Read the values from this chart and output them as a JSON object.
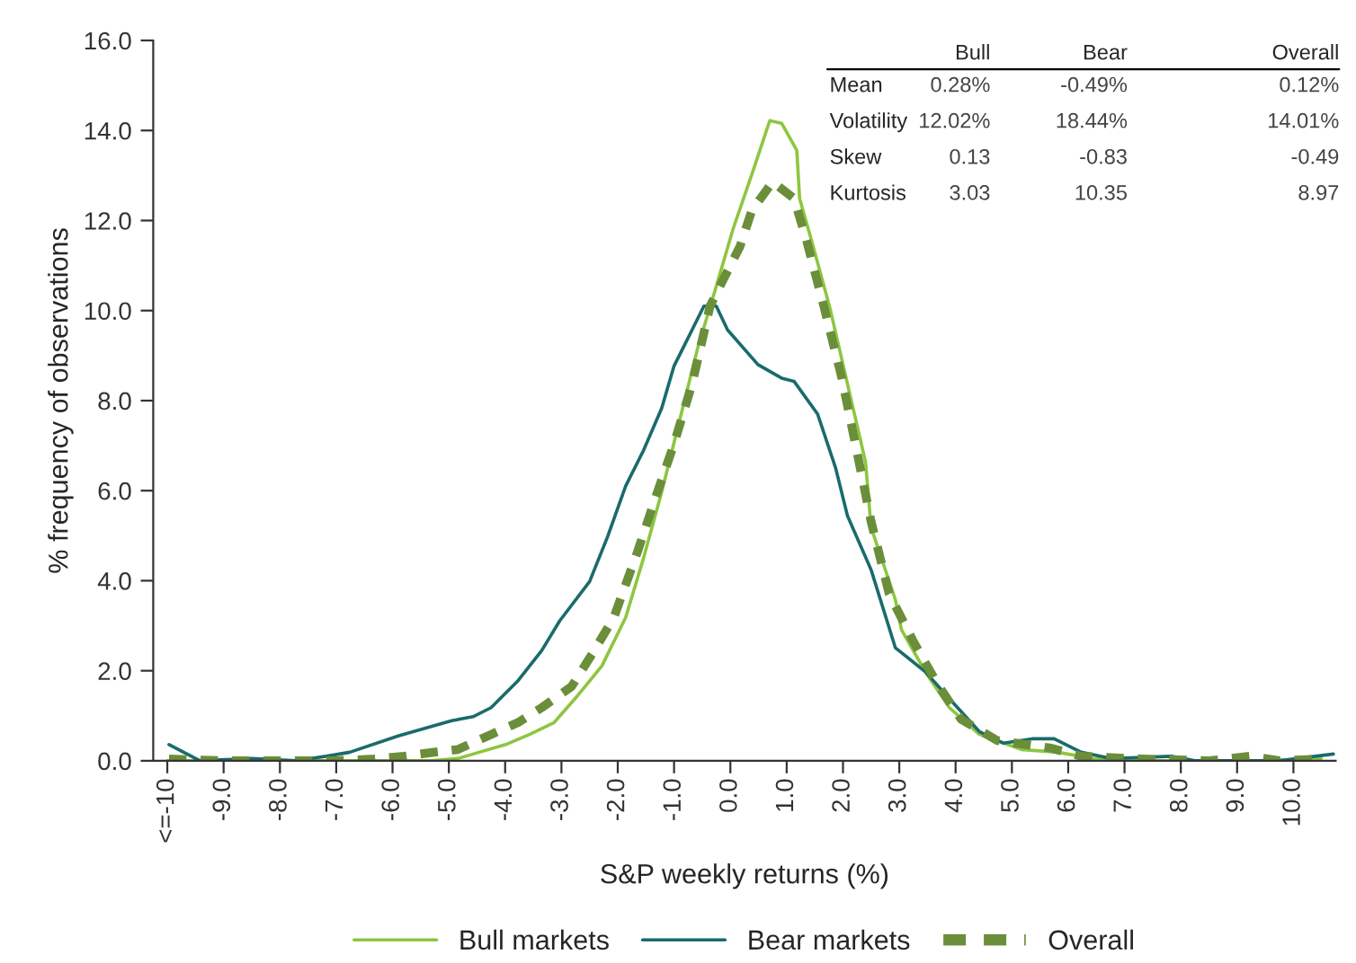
{
  "chart_data": {
    "type": "line",
    "xlabel": "S&P weekly returns (%)",
    "ylabel": "% frequency of observations",
    "xlim": [
      -10.25,
      10.75
    ],
    "xticks": [
      {
        "value": -10,
        "label": "<=-10"
      },
      {
        "value": -9,
        "label": "-9.0"
      },
      {
        "value": -8,
        "label": "-8.0"
      },
      {
        "value": -7,
        "label": "-7.0"
      },
      {
        "value": -6,
        "label": "-6.0"
      },
      {
        "value": -5,
        "label": "-5.0"
      },
      {
        "value": -4,
        "label": "-4.0"
      },
      {
        "value": -3,
        "label": "-3.0"
      },
      {
        "value": -2,
        "label": "-2.0"
      },
      {
        "value": -1,
        "label": "-1.0"
      },
      {
        "value": 0,
        "label": "0.0"
      },
      {
        "value": 1,
        "label": "1.0"
      },
      {
        "value": 2,
        "label": "2.0"
      },
      {
        "value": 3,
        "label": "3.0"
      },
      {
        "value": 4,
        "label": "4.0"
      },
      {
        "value": 5,
        "label": "5.0"
      },
      {
        "value": 6,
        "label": "6.0"
      },
      {
        "value": 7,
        "label": "7.0"
      },
      {
        "value": 8,
        "label": "8.0"
      },
      {
        "value": 9,
        "label": "9.0"
      },
      {
        "value": 10,
        "label": "10.0"
      }
    ],
    "ylim": [
      0,
      16
    ],
    "yticks": [
      {
        "value": 0,
        "label": "0.0"
      },
      {
        "value": 2,
        "label": "2.0"
      },
      {
        "value": 4,
        "label": "4.0"
      },
      {
        "value": 6,
        "label": "6.0"
      },
      {
        "value": 8,
        "label": "8.0"
      },
      {
        "value": 10,
        "label": "10.0"
      },
      {
        "value": 12,
        "label": "12.0"
      },
      {
        "value": 14,
        "label": "14.0"
      },
      {
        "value": 16,
        "label": "16.0"
      }
    ],
    "grid": false,
    "legend": "bottom",
    "series": [
      {
        "name": "Bull markets",
        "color": "#8dc63f",
        "line_style": "solid",
        "x": [
          -10,
          -9,
          -8,
          -7,
          -6,
          -5.3,
          -4.84,
          -3.99,
          -3.56,
          -3.13,
          -2.71,
          -2.28,
          -1.86,
          -1.54,
          -1.22,
          -0.9,
          -0.58,
          -0.26,
          0.05,
          0.38,
          0.7,
          0.91,
          1.18,
          1.23,
          1.44,
          1.76,
          2.08,
          2.4,
          2.5,
          2.93,
          3.04,
          3.46,
          3.89,
          4.42,
          5.17,
          5.81,
          6.45,
          7.5,
          8.5,
          9.5,
          10.49
        ],
        "values": [
          0,
          0,
          0,
          0,
          0,
          0,
          0.05,
          0.36,
          0.59,
          0.85,
          1.45,
          2.11,
          3.18,
          4.51,
          5.97,
          7.57,
          9.17,
          10.5,
          11.82,
          13.02,
          14.22,
          14.16,
          13.56,
          12.49,
          11.56,
          10.1,
          8.37,
          6.64,
          5.18,
          3.58,
          2.91,
          1.98,
          1.18,
          0.59,
          0.25,
          0.19,
          0.05,
          0,
          0,
          0,
          0.05
        ]
      },
      {
        "name": "Bear markets",
        "color": "#1a6b6b",
        "line_style": "solid",
        "x": [
          -9.97,
          -9.42,
          -8.5,
          -7.72,
          -7.18,
          -6.76,
          -5.9,
          -4.95,
          -4.57,
          -4.25,
          -3.77,
          -3.35,
          -3.03,
          -2.5,
          -2.18,
          -1.86,
          -1.54,
          -1.22,
          -1.0,
          -0.68,
          -0.47,
          -0.25,
          -0.05,
          0.49,
          0.91,
          1.13,
          1.55,
          1.87,
          2.08,
          2.5,
          2.93,
          3.46,
          3.89,
          4.42,
          4.85,
          5.38,
          5.75,
          6.23,
          6.76,
          7.83,
          8.25,
          9.2,
          9.75,
          10.71
        ],
        "values": [
          0.36,
          0,
          0.05,
          0,
          0.1,
          0.19,
          0.55,
          0.89,
          0.98,
          1.18,
          1.78,
          2.45,
          3.11,
          3.98,
          4.98,
          6.1,
          6.9,
          7.83,
          8.77,
          9.57,
          10.1,
          10.1,
          9.57,
          8.8,
          8.5,
          8.43,
          7.7,
          6.5,
          5.44,
          4.24,
          2.51,
          1.98,
          1.38,
          0.65,
          0.39,
          0.49,
          0.49,
          0.19,
          0.05,
          0.1,
          0,
          0,
          0,
          0.15
        ]
      },
      {
        "name": "Overall",
        "color": "#6b8e3a",
        "line_style": "dashed",
        "x": [
          -9.97,
          -9,
          -8,
          -7,
          -6.33,
          -5.8,
          -5.27,
          -4.84,
          -4.31,
          -3.77,
          -3.35,
          -2.82,
          -2.45,
          -2.07,
          -1.65,
          -1.33,
          -1.0,
          -0.68,
          -0.36,
          -0.15,
          0.17,
          0.38,
          0.75,
          1.13,
          1.34,
          1.66,
          1.98,
          2.35,
          2.5,
          2.82,
          3.25,
          3.67,
          4.1,
          4.74,
          5.7,
          6.23,
          7.3,
          8.5,
          9.22,
          9.75,
          10.49
        ],
        "values": [
          0.04,
          0,
          0,
          0,
          0.04,
          0.1,
          0.19,
          0.25,
          0.55,
          0.85,
          1.18,
          1.65,
          2.38,
          3.18,
          4.64,
          5.84,
          7.04,
          8.37,
          10.1,
          10.63,
          11.42,
          12.22,
          12.86,
          12.49,
          11.62,
          10.1,
          8.5,
          6.24,
          5.31,
          3.71,
          2.65,
          1.72,
          0.92,
          0.45,
          0.28,
          0.1,
          0.04,
          0,
          0.1,
          0,
          0.04
        ]
      }
    ],
    "annotations": [
      "Bull",
      "Bear",
      "Overall",
      "Mean",
      "0.28%",
      "-0.49%",
      "0.12%",
      "Volatility",
      "12.02%",
      "18.44%",
      "14.01%",
      "Skew",
      "0.13",
      "-0.83",
      "-0.49",
      "Kurtosis",
      "3.03",
      "10.35",
      "8.97"
    ]
  }
}
